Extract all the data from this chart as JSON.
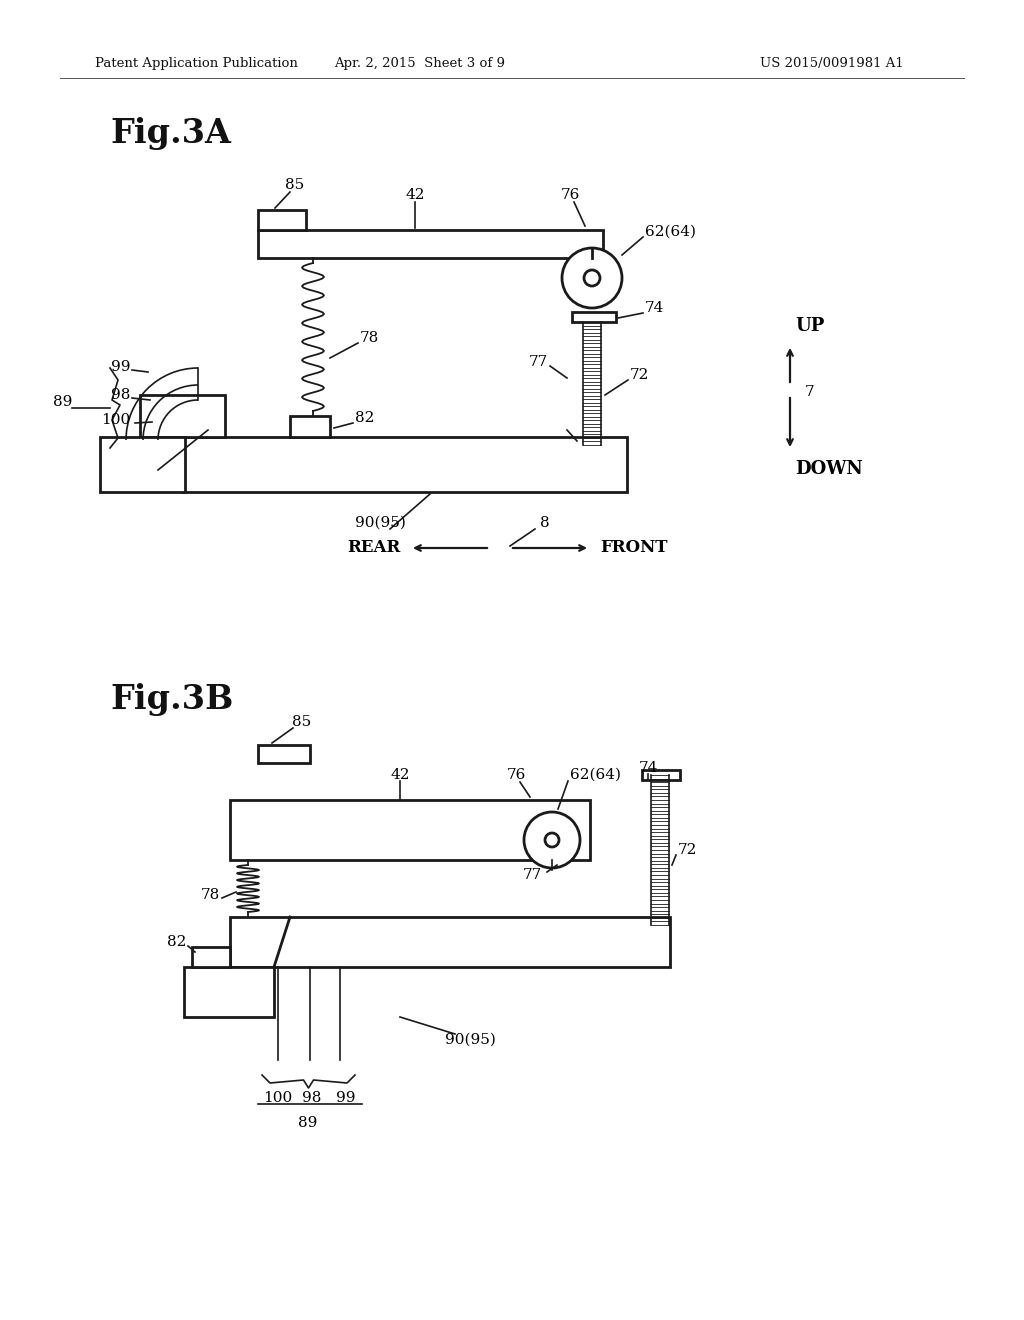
{
  "background_color": "#ffffff",
  "header_left": "Patent Application Publication",
  "header_mid": "Apr. 2, 2015  Sheet 3 of 9",
  "header_right": "US 2015/0091981 A1",
  "fig3a_label": "Fig.3A",
  "fig3b_label": "Fig.3B"
}
